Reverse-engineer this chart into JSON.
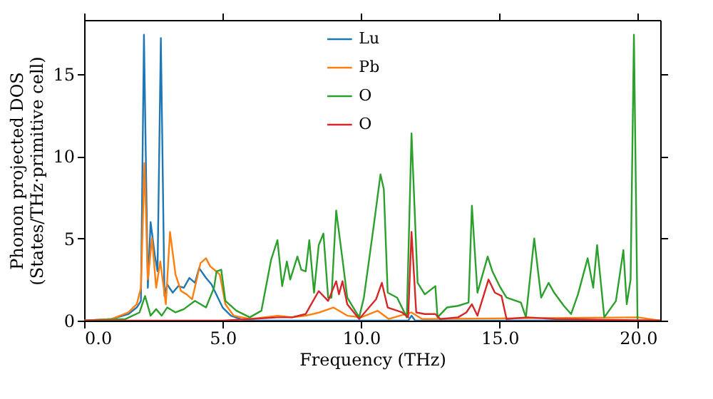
{
  "chart_data": {
    "type": "line",
    "xlabel": "Frequency (THz)",
    "ylabel": "Phonon projected DOS\n(States/THz·primitive cell)",
    "xlim": [
      0,
      20.8
    ],
    "ylim": [
      0,
      18.3
    ],
    "xticks": [
      {
        "value": 0,
        "label": "0.0"
      },
      {
        "value": 5,
        "label": "5.0"
      },
      {
        "value": 10,
        "label": "10.0"
      },
      {
        "value": 15,
        "label": "15.0"
      },
      {
        "value": 20,
        "label": "20.0"
      }
    ],
    "yticks": [
      0,
      5,
      10,
      15
    ],
    "grid": false,
    "legend": "top",
    "line_style": "solid",
    "marker": "none",
    "series": [
      {
        "name": "Lu",
        "color": "#1f77b4",
        "x": [
          0,
          1.0,
          1.6,
          1.9,
          2.05,
          2.16,
          2.3,
          2.4,
          2.55,
          2.65,
          2.77,
          2.9,
          3.0,
          3.2,
          3.4,
          3.6,
          3.8,
          4.0,
          4.15,
          4.4,
          4.6,
          4.8,
          5.0,
          5.3,
          5.8,
          11.7,
          11.82,
          11.95,
          20.8
        ],
        "values": [
          0,
          0.1,
          0.4,
          0.8,
          1.2,
          17.4,
          2,
          6,
          4,
          3,
          17.2,
          1.5,
          2.2,
          1.7,
          2.1,
          2.0,
          2.6,
          2.3,
          3.2,
          2.6,
          2.2,
          1.5,
          0.8,
          0.3,
          0,
          0,
          0.3,
          0,
          0
        ]
      },
      {
        "name": "Pb",
        "color": "#ff7f0e",
        "x": [
          0,
          1.0,
          1.6,
          1.9,
          2.05,
          2.18,
          2.3,
          2.45,
          2.6,
          2.75,
          2.95,
          3.1,
          3.3,
          3.5,
          3.7,
          3.9,
          4.2,
          4.4,
          4.55,
          4.7,
          4.9,
          5.1,
          5.4,
          6.0,
          7.0,
          7.5,
          8.0,
          8.5,
          9.0,
          9.5,
          10.0,
          10.6,
          11.0,
          11.82,
          12.2,
          20.0,
          20.8
        ],
        "values": [
          0,
          0.1,
          0.5,
          1.0,
          2.0,
          9.6,
          2.5,
          5,
          2,
          3.6,
          1.0,
          5.4,
          2.8,
          1.8,
          1.6,
          1.3,
          3.5,
          3.8,
          3.3,
          3.1,
          2.8,
          1.0,
          0.3,
          0.1,
          0.3,
          0.2,
          0.3,
          0.5,
          0.8,
          0.3,
          0.2,
          0.6,
          0.1,
          0.5,
          0.1,
          0.2,
          0
        ]
      },
      {
        "name": "O",
        "color": "#2ca02c",
        "x": [
          0,
          1.5,
          2.0,
          2.2,
          2.4,
          2.6,
          2.8,
          3.0,
          3.3,
          3.6,
          4.0,
          4.4,
          4.69,
          4.78,
          4.95,
          5.1,
          5.5,
          5.98,
          6.4,
          6.75,
          6.98,
          7.15,
          7.32,
          7.44,
          7.7,
          7.84,
          8.0,
          8.13,
          8.3,
          8.47,
          8.64,
          8.81,
          8.93,
          9.1,
          9.33,
          9.5,
          9.93,
          10.1,
          10.45,
          10.7,
          10.82,
          10.96,
          11.3,
          11.65,
          11.82,
          12.04,
          12.3,
          12.68,
          12.76,
          13.1,
          13.5,
          13.88,
          14.0,
          14.2,
          14.57,
          14.74,
          15.0,
          15.25,
          15.77,
          15.95,
          16.25,
          16.5,
          16.77,
          16.97,
          17.32,
          17.58,
          17.83,
          18.18,
          18.38,
          18.52,
          18.78,
          19.2,
          19.47,
          19.59,
          19.73,
          19.85,
          19.98,
          20.8
        ],
        "values": [
          0,
          0.1,
          0.5,
          1.5,
          0.3,
          0.7,
          0.3,
          0.8,
          0.5,
          0.7,
          1.2,
          0.8,
          2.0,
          3.0,
          3.1,
          1.2,
          0.6,
          0.2,
          0.6,
          3.7,
          4.9,
          2.1,
          3.6,
          2.5,
          3.9,
          3.1,
          3.0,
          4.9,
          1.7,
          4.6,
          5.3,
          1.4,
          1.4,
          6.7,
          3.7,
          1.4,
          0.2,
          1.4,
          5.7,
          8.9,
          8.0,
          1.7,
          1.4,
          0.2,
          11.4,
          2.3,
          1.6,
          2.1,
          0.2,
          0.8,
          0.9,
          1.1,
          7.0,
          1.7,
          3.9,
          3.0,
          2.1,
          1.4,
          1.1,
          0.2,
          5.0,
          1.4,
          2.3,
          1.7,
          0.9,
          0.4,
          1.6,
          3.8,
          2.0,
          4.6,
          0.2,
          1.2,
          4.3,
          1.0,
          2.5,
          17.4,
          0,
          0
        ]
      },
      {
        "name": "O",
        "color": "#d62728",
        "x": [
          0,
          5.0,
          6.0,
          7.0,
          7.5,
          8.0,
          8.13,
          8.47,
          8.81,
          9.1,
          9.2,
          9.33,
          9.5,
          9.93,
          10.54,
          10.75,
          10.96,
          11.48,
          11.7,
          11.82,
          11.99,
          12.3,
          12.68,
          12.85,
          13.5,
          13.8,
          14.0,
          14.2,
          14.6,
          14.83,
          15.07,
          15.25,
          16.0,
          17.0,
          20.8
        ],
        "values": [
          0,
          0,
          0.1,
          0.2,
          0.2,
          0.4,
          0.8,
          1.8,
          1.2,
          2.4,
          1.6,
          2.4,
          1.0,
          0.1,
          1.3,
          2.3,
          0.8,
          0.5,
          0.2,
          5.4,
          0.5,
          0.4,
          0.4,
          0.1,
          0.2,
          0.5,
          1.0,
          0.3,
          2.5,
          1.7,
          1.5,
          0.1,
          0.2,
          0.1,
          0
        ]
      }
    ]
  }
}
